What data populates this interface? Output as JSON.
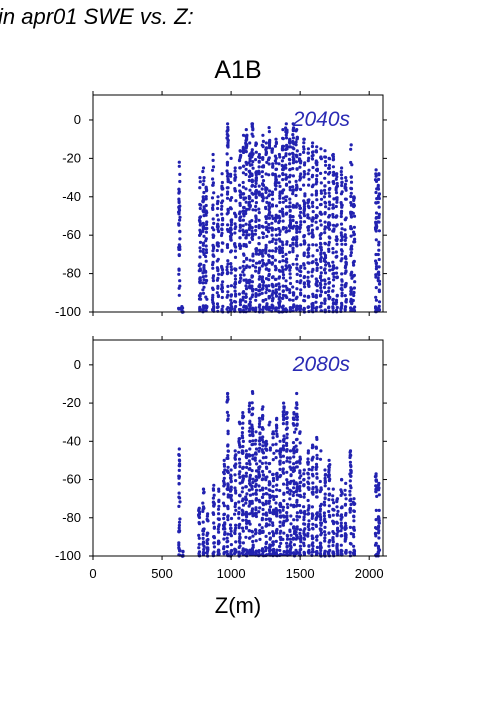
{
  "figure_title": "in apr01 SWE vs. Z:",
  "scenario": "A1B",
  "colors": {
    "points": "#2222b0",
    "period_label": "#2a2ab4",
    "axes": "#000000"
  },
  "chart_data": [
    {
      "type": "scatter",
      "panel_label": "2040s",
      "xlim": [
        0,
        2100
      ],
      "ylim": [
        -100,
        13
      ],
      "yticks": [
        "0",
        "-20",
        "-40",
        "-60",
        "-80",
        "-100"
      ],
      "ytick_values": [
        0,
        -20,
        -40,
        -60,
        -80,
        -100
      ],
      "xticks": [],
      "grid": false,
      "columns": [
        {
          "x": 625,
          "top": -22
        },
        {
          "x": 648,
          "top": -100
        },
        {
          "x": 775,
          "top": -30
        },
        {
          "x": 800,
          "top": -25
        },
        {
          "x": 820,
          "top": -35
        },
        {
          "x": 870,
          "top": -18
        },
        {
          "x": 905,
          "top": -40
        },
        {
          "x": 935,
          "top": -28
        },
        {
          "x": 975,
          "top": -2
        },
        {
          "x": 1000,
          "top": -20
        },
        {
          "x": 1030,
          "top": -25
        },
        {
          "x": 1065,
          "top": -16
        },
        {
          "x": 1090,
          "top": -8
        },
        {
          "x": 1110,
          "top": -5
        },
        {
          "x": 1135,
          "top": -12
        },
        {
          "x": 1155,
          "top": -2
        },
        {
          "x": 1180,
          "top": -12
        },
        {
          "x": 1205,
          "top": -18
        },
        {
          "x": 1230,
          "top": -8
        },
        {
          "x": 1255,
          "top": -12
        },
        {
          "x": 1275,
          "top": -4
        },
        {
          "x": 1300,
          "top": -15
        },
        {
          "x": 1325,
          "top": -10
        },
        {
          "x": 1350,
          "top": -18
        },
        {
          "x": 1375,
          "top": -5
        },
        {
          "x": 1400,
          "top": -2
        },
        {
          "x": 1425,
          "top": -10
        },
        {
          "x": 1450,
          "top": -2
        },
        {
          "x": 1475,
          "top": -5
        },
        {
          "x": 1500,
          "top": -18
        },
        {
          "x": 1530,
          "top": -10
        },
        {
          "x": 1560,
          "top": -15
        },
        {
          "x": 1590,
          "top": -12
        },
        {
          "x": 1620,
          "top": -14
        },
        {
          "x": 1650,
          "top": -15
        },
        {
          "x": 1680,
          "top": -16
        },
        {
          "x": 1710,
          "top": -20
        },
        {
          "x": 1740,
          "top": -18
        },
        {
          "x": 1765,
          "top": -28
        },
        {
          "x": 1800,
          "top": -25
        },
        {
          "x": 1830,
          "top": -30
        },
        {
          "x": 1870,
          "top": -13
        },
        {
          "x": 1890,
          "top": -40
        },
        {
          "x": 2050,
          "top": -26
        },
        {
          "x": 2070,
          "top": -28
        }
      ]
    },
    {
      "type": "scatter",
      "panel_label": "2080s",
      "xlim": [
        0,
        2100
      ],
      "ylim": [
        -100,
        13
      ],
      "yticks": [
        "0",
        "-20",
        "-40",
        "-60",
        "-80",
        "-100"
      ],
      "ytick_values": [
        0,
        -20,
        -40,
        -60,
        -80,
        -100
      ],
      "xticks": [
        "0",
        "500",
        "1000",
        "1500",
        "2000"
      ],
      "xtick_values": [
        0,
        500,
        1000,
        1500,
        2000
      ],
      "xlabel": "Z(m)",
      "grid": false,
      "columns": [
        {
          "x": 625,
          "top": -44
        },
        {
          "x": 648,
          "top": -100
        },
        {
          "x": 770,
          "top": -75
        },
        {
          "x": 800,
          "top": -65
        },
        {
          "x": 830,
          "top": -78
        },
        {
          "x": 875,
          "top": -63
        },
        {
          "x": 910,
          "top": -65
        },
        {
          "x": 950,
          "top": -50
        },
        {
          "x": 975,
          "top": -15
        },
        {
          "x": 1000,
          "top": -55
        },
        {
          "x": 1030,
          "top": -45
        },
        {
          "x": 1060,
          "top": -30
        },
        {
          "x": 1085,
          "top": -25
        },
        {
          "x": 1110,
          "top": -45
        },
        {
          "x": 1135,
          "top": -20
        },
        {
          "x": 1155,
          "top": -14
        },
        {
          "x": 1180,
          "top": -35
        },
        {
          "x": 1205,
          "top": -28
        },
        {
          "x": 1230,
          "top": -22
        },
        {
          "x": 1255,
          "top": -40
        },
        {
          "x": 1280,
          "top": -30
        },
        {
          "x": 1305,
          "top": -35
        },
        {
          "x": 1330,
          "top": -28
        },
        {
          "x": 1355,
          "top": -40
        },
        {
          "x": 1380,
          "top": -20
        },
        {
          "x": 1405,
          "top": -25
        },
        {
          "x": 1430,
          "top": -45
        },
        {
          "x": 1455,
          "top": -25
        },
        {
          "x": 1475,
          "top": -15
        },
        {
          "x": 1500,
          "top": -35
        },
        {
          "x": 1530,
          "top": -55
        },
        {
          "x": 1560,
          "top": -45
        },
        {
          "x": 1590,
          "top": -42
        },
        {
          "x": 1620,
          "top": -38
        },
        {
          "x": 1650,
          "top": -45
        },
        {
          "x": 1680,
          "top": -55
        },
        {
          "x": 1710,
          "top": -50
        },
        {
          "x": 1740,
          "top": -65
        },
        {
          "x": 1770,
          "top": -70
        },
        {
          "x": 1800,
          "top": -60
        },
        {
          "x": 1830,
          "top": -62
        },
        {
          "x": 1865,
          "top": -45
        },
        {
          "x": 1890,
          "top": -70
        },
        {
          "x": 2050,
          "top": -57
        },
        {
          "x": 2070,
          "top": -62
        }
      ]
    }
  ]
}
